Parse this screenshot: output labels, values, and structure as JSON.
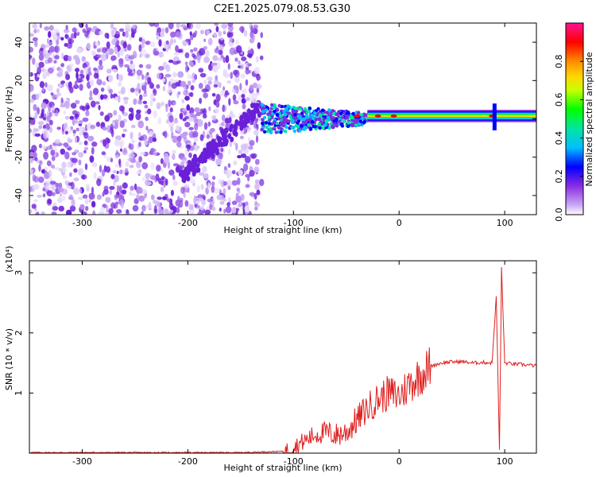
{
  "title": "C2E1.2025.079.08.53.G30",
  "chart_data": [
    {
      "type": "heatmap",
      "xlabel": "Height of straight line (km)",
      "ylabel": "Frequency (Hz)",
      "xlim": [
        -350,
        130
      ],
      "ylim": [
        -50,
        50
      ],
      "x_ticks": [
        "-300",
        "-200",
        "-100",
        "0",
        "100"
      ],
      "y_ticks": [
        "-40",
        "-20",
        "0",
        "20",
        "40"
      ],
      "colorbar": {
        "label": "Normalized spectral amplitude",
        "range": [
          0,
          1
        ],
        "ticks": [
          "0.0",
          "0.2",
          "0.4",
          "0.6",
          "0.8"
        ],
        "colors": [
          "#ffffff",
          "#c9a8f5",
          "#8a2be2",
          "#0000ff",
          "#00bfff",
          "#00e5a0",
          "#00ff00",
          "#c8ff00",
          "#ffd700",
          "#ff8c00",
          "#ff0000",
          "#ff1493"
        ]
      }
    },
    {
      "type": "line",
      "xlabel": "Height of straight line (km)",
      "ylabel": "SNR (10 * v/v)",
      "y_multiplier": "(x10⁴)",
      "xlim": [
        -350,
        130
      ],
      "ylim": [
        0,
        3.2
      ],
      "x_ticks": [
        "-300",
        "-200",
        "-100",
        "0",
        "100"
      ],
      "y_ticks": [
        "1",
        "2",
        "3"
      ],
      "series": [
        {
          "color": "#e02020",
          "x": [
            -350,
            -250,
            -150,
            -110,
            -100,
            -90,
            -80,
            -70,
            -60,
            -50,
            -40,
            -30,
            -20,
            -10,
            0,
            10,
            20,
            30,
            40,
            50,
            60,
            70,
            80,
            88,
            92,
            95,
            97,
            100,
            110,
            120,
            130
          ],
          "y": [
            0.01,
            0.01,
            0.01,
            0.03,
            0.1,
            0.2,
            0.3,
            0.35,
            0.3,
            0.35,
            0.55,
            0.75,
            0.9,
            1.0,
            0.95,
            1.15,
            1.3,
            1.45,
            1.5,
            1.52,
            1.52,
            1.5,
            1.51,
            1.5,
            2.6,
            0.05,
            3.1,
            1.5,
            1.48,
            1.47,
            1.45
          ]
        }
      ]
    }
  ]
}
